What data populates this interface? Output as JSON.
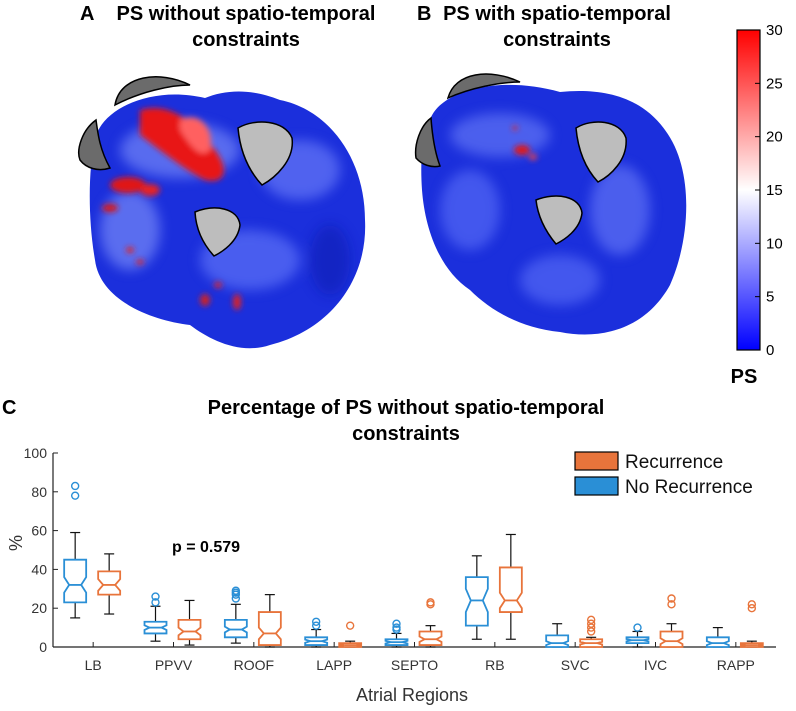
{
  "panels": {
    "a": {
      "letter": "A",
      "title_line1": "PS without spatio-temporal",
      "title_line2": "constraints"
    },
    "b": {
      "letter": "B",
      "title_line1": "PS with spatio-temporal",
      "title_line2": "constraints"
    },
    "c": {
      "letter": "C"
    }
  },
  "colorbar": {
    "label": "PS",
    "min": 0,
    "max": 30,
    "ticks": [
      "0",
      "5",
      "10",
      "15",
      "20",
      "25",
      "30"
    ],
    "colors": {
      "low": "#0000ff",
      "mid": "#ffffff",
      "high": "#ff0000"
    }
  },
  "chart_data": {
    "type": "box",
    "title_line1": "Percentage of PS without spatio-temporal",
    "title_line2": "constraints",
    "xlabel": "Atrial Regions",
    "ylabel": "%",
    "ylim": [
      0,
      100
    ],
    "yticks": [
      "0",
      "20",
      "40",
      "60",
      "80",
      "100"
    ],
    "categories": [
      "LB",
      "PPVV",
      "ROOF",
      "LAPP",
      "SEPTO",
      "RB",
      "SVC",
      "IVC",
      "RAPP"
    ],
    "annotation": "p = 0.579",
    "legend": [
      "Recurrence",
      "No Recurrence"
    ],
    "series": [
      {
        "name": "No Recurrence",
        "color": "#2a8fd6",
        "boxes": [
          {
            "q1": 23,
            "med": 32,
            "q3": 45,
            "lo": 15,
            "hi": 59,
            "notch": [
              28,
              36
            ],
            "outliers": [
              78,
              83
            ]
          },
          {
            "q1": 7,
            "med": 10,
            "q3": 13,
            "lo": 3,
            "hi": 21,
            "notch": [
              8.8,
              11.2
            ],
            "outliers": [
              23,
              26
            ]
          },
          {
            "q1": 5,
            "med": 9,
            "q3": 14,
            "lo": 2,
            "hi": 22,
            "notch": [
              7.5,
              10.5
            ],
            "outliers": [
              25,
              27,
              28,
              29
            ]
          },
          {
            "q1": 1,
            "med": 3,
            "q3": 5,
            "lo": 0,
            "hi": 9,
            "notch": [
              2.2,
              3.8
            ],
            "outliers": [
              11,
              13
            ]
          },
          {
            "q1": 1,
            "med": 2.5,
            "q3": 4,
            "lo": 0,
            "hi": 7,
            "notch": [
              1.8,
              3.2
            ],
            "outliers": [
              9,
              10,
              12
            ]
          },
          {
            "q1": 11,
            "med": 24,
            "q3": 36,
            "lo": 4,
            "hi": 47,
            "notch": [
              18,
              30
            ],
            "outliers": []
          },
          {
            "q1": 0,
            "med": 2,
            "q3": 6,
            "lo": 0,
            "hi": 12,
            "notch": [
              1,
              3
            ],
            "outliers": []
          },
          {
            "q1": 2,
            "med": 3.5,
            "q3": 5,
            "lo": 0,
            "hi": 8,
            "notch": [
              2.9,
              4.1
            ],
            "outliers": [
              10
            ]
          },
          {
            "q1": 0,
            "med": 2,
            "q3": 5,
            "lo": 0,
            "hi": 10,
            "notch": [
              1,
              3
            ],
            "outliers": []
          }
        ]
      },
      {
        "name": "Recurrence",
        "color": "#e8743b",
        "boxes": [
          {
            "q1": 27,
            "med": 32,
            "q3": 39,
            "lo": 17,
            "hi": 48,
            "notch": [
              29,
              35
            ],
            "outliers": []
          },
          {
            "q1": 4,
            "med": 8,
            "q3": 14,
            "lo": 1,
            "hi": 24,
            "notch": [
              6,
              10
            ],
            "outliers": []
          },
          {
            "q1": 1,
            "med": 7,
            "q3": 18,
            "lo": 0,
            "hi": 27,
            "notch": [
              4,
              10
            ],
            "outliers": []
          },
          {
            "q1": 0,
            "med": 1,
            "q3": 2,
            "lo": 0,
            "hi": 3,
            "notch": [
              0.6,
              1.4
            ],
            "outliers": [
              11
            ]
          },
          {
            "q1": 1,
            "med": 4,
            "q3": 8,
            "lo": 0,
            "hi": 11,
            "notch": [
              2.6,
              5.4
            ],
            "outliers": [
              22,
              23
            ]
          },
          {
            "q1": 18,
            "med": 24,
            "q3": 41,
            "lo": 4,
            "hi": 58,
            "notch": [
              20,
              28
            ],
            "outliers": []
          },
          {
            "q1": 0,
            "med": 2,
            "q3": 4,
            "lo": 0,
            "hi": 5,
            "notch": [
              1.3,
              2.7
            ],
            "outliers": [
              8,
              10,
              12,
              14
            ]
          },
          {
            "q1": 0,
            "med": 3,
            "q3": 8,
            "lo": 0,
            "hi": 12,
            "notch": [
              1.5,
              4.5
            ],
            "outliers": [
              22,
              25
            ]
          },
          {
            "q1": 0,
            "med": 1,
            "q3": 2,
            "lo": 0,
            "hi": 3,
            "notch": [
              0.6,
              1.4
            ],
            "outliers": [
              20,
              22
            ]
          }
        ]
      }
    ]
  }
}
